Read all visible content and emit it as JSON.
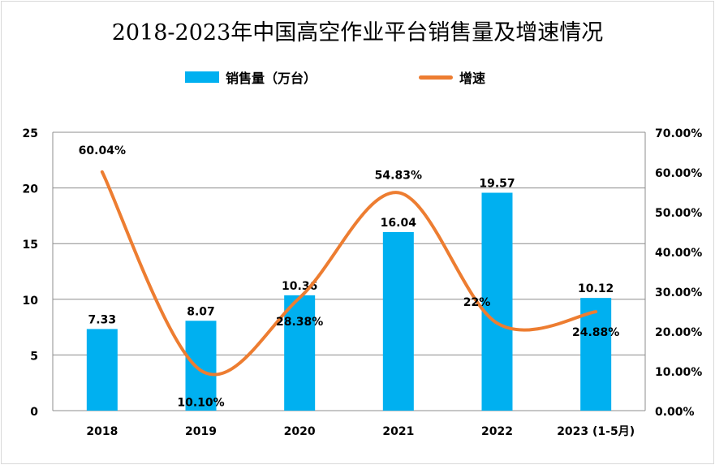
{
  "chart_data": {
    "type": "bar+line",
    "title": "2018-2023年中国高空作业平台销售量及增速情况",
    "categories": [
      "2018",
      "2019",
      "2020",
      "2021",
      "2022",
      "2023 (1-5月)"
    ],
    "series": [
      {
        "name": "销售量（万台）",
        "type": "bar",
        "axis": "left",
        "color": "#00b0f0",
        "values": [
          7.33,
          8.07,
          10.36,
          16.04,
          19.57,
          10.12
        ],
        "labels": [
          "7.33",
          "8.07",
          "10.36",
          "16.04",
          "19.57",
          "10.12"
        ]
      },
      {
        "name": "增速",
        "type": "line",
        "smooth": true,
        "axis": "right",
        "color": "#ed7d31",
        "values": [
          60.04,
          10.1,
          28.38,
          54.83,
          22,
          24.88
        ],
        "labels": [
          "60.04%",
          "10.10%",
          "28.38%",
          "54.83%",
          "22%",
          "24.88%"
        ]
      }
    ],
    "left_axis": {
      "ylim": [
        0,
        25
      ],
      "ticks": [
        "0",
        "5",
        "10",
        "15",
        "20",
        "25"
      ]
    },
    "right_axis": {
      "ylim": [
        0,
        70
      ],
      "ticks": [
        "0.00%",
        "10.00%",
        "20.00%",
        "30.00%",
        "40.00%",
        "50.00%",
        "60.00%",
        "70.00%"
      ]
    },
    "grid": true,
    "legend_position": "top"
  }
}
